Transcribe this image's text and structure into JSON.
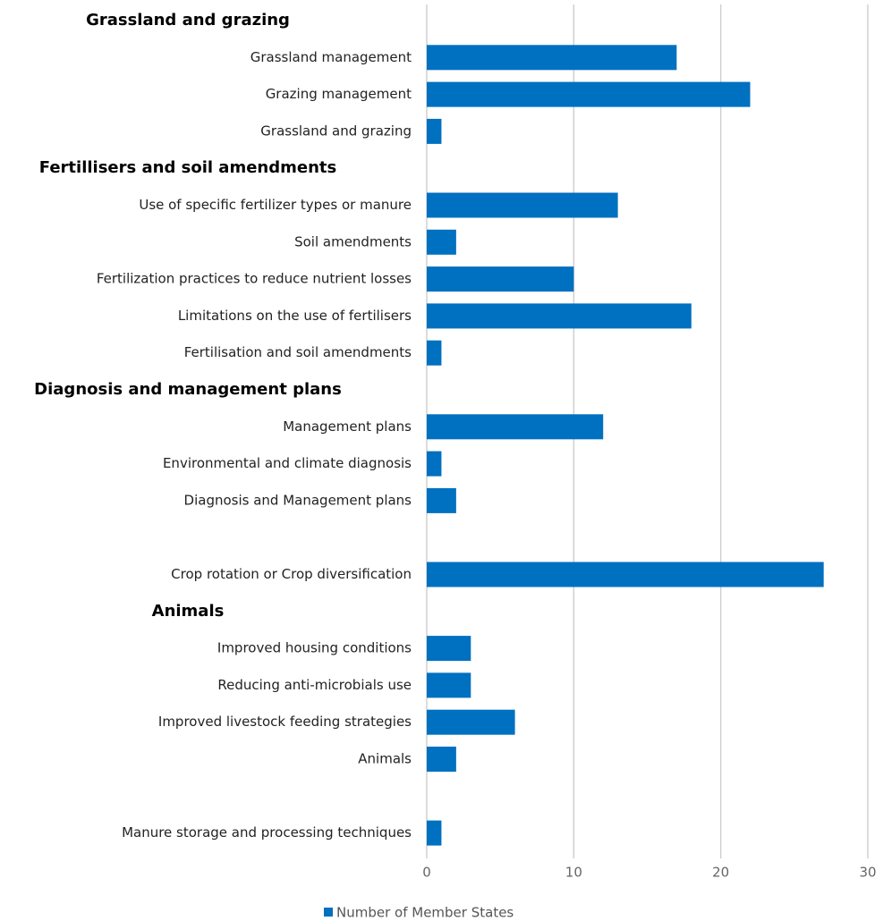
{
  "chart_data": {
    "type": "bar",
    "orientation": "horizontal",
    "groups": [
      {
        "name": "Grassland and grazing",
        "categories": [
          "Grassland management",
          "Grazing management",
          "Grassland and grazing"
        ],
        "values": [
          17,
          22,
          1
        ]
      },
      {
        "name": "Fertillisers and soil amendments",
        "categories": [
          "Use of specific fertilizer types or manure",
          "Soil amendments",
          "Fertilization practices to reduce nutrient losses",
          "Limitations on the use of fertilisers",
          "Fertilisation and soil amendments"
        ],
        "values": [
          13,
          2,
          10,
          18,
          1
        ]
      },
      {
        "name": "Diagnosis and management plans",
        "categories": [
          "Management plans",
          "Environmental and climate diagnosis",
          "Diagnosis and Management plans"
        ],
        "values": [
          12,
          1,
          2
        ]
      },
      {
        "categories": [
          "Crop rotation or Crop diversification"
        ],
        "values": [
          27
        ]
      },
      {
        "name": "Animals",
        "categories": [
          "Improved housing conditions",
          "Reducing anti-microbials use",
          "Improved livestock feeding strategies",
          "Animals"
        ],
        "values": [
          3,
          3,
          6,
          2
        ]
      },
      {
        "categories": [
          "Manure storage and processing techniques"
        ],
        "values": [
          1
        ]
      }
    ],
    "series_name": "Number of Member States",
    "color": "#0070c0",
    "xlim": [
      0,
      30
    ],
    "xticks": [
      0,
      10,
      20,
      30
    ],
    "grid": true
  }
}
